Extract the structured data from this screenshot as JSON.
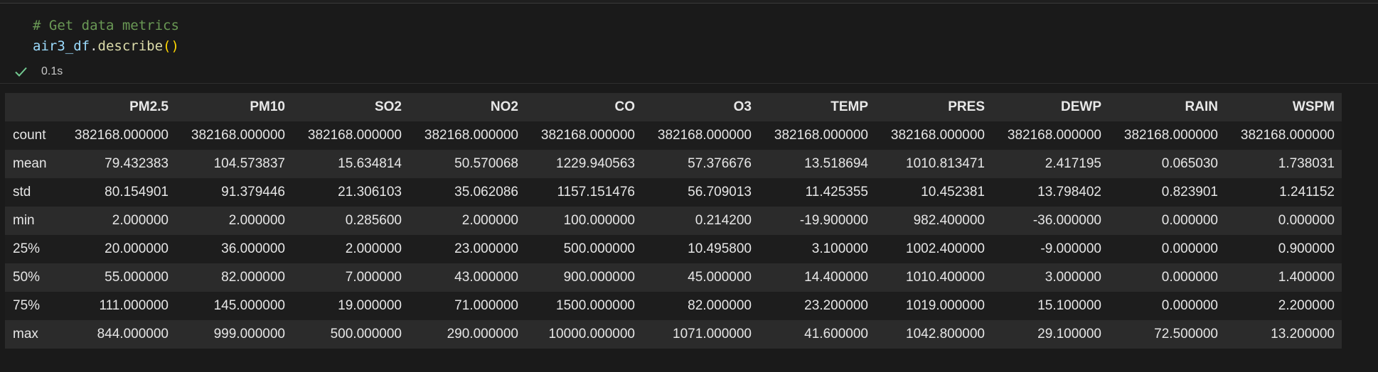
{
  "code": {
    "comment": "# Get data metrics",
    "var": "air3_df",
    "dot": ".",
    "method": "describe",
    "parens": "()"
  },
  "execution": {
    "status_icon": "check-icon",
    "status_color": "#73c991",
    "time": "0.1s"
  },
  "table": {
    "columns": [
      "PM2.5",
      "PM10",
      "SO2",
      "NO2",
      "CO",
      "O3",
      "TEMP",
      "PRES",
      "DEWP",
      "RAIN",
      "WSPM"
    ],
    "rows": [
      {
        "label": "count",
        "values": [
          "382168.000000",
          "382168.000000",
          "382168.000000",
          "382168.000000",
          "382168.000000",
          "382168.000000",
          "382168.000000",
          "382168.000000",
          "382168.000000",
          "382168.000000",
          "382168.000000"
        ]
      },
      {
        "label": "mean",
        "values": [
          "79.432383",
          "104.573837",
          "15.634814",
          "50.570068",
          "1229.940563",
          "57.376676",
          "13.518694",
          "1010.813471",
          "2.417195",
          "0.065030",
          "1.738031"
        ]
      },
      {
        "label": "std",
        "values": [
          "80.154901",
          "91.379446",
          "21.306103",
          "35.062086",
          "1157.151476",
          "56.709013",
          "11.425355",
          "10.452381",
          "13.798402",
          "0.823901",
          "1.241152"
        ]
      },
      {
        "label": "min",
        "values": [
          "2.000000",
          "2.000000",
          "0.285600",
          "2.000000",
          "100.000000",
          "0.214200",
          "-19.900000",
          "982.400000",
          "-36.000000",
          "0.000000",
          "0.000000"
        ]
      },
      {
        "label": "25%",
        "values": [
          "20.000000",
          "36.000000",
          "2.000000",
          "23.000000",
          "500.000000",
          "10.495800",
          "3.100000",
          "1002.400000",
          "-9.000000",
          "0.000000",
          "0.900000"
        ]
      },
      {
        "label": "50%",
        "values": [
          "55.000000",
          "82.000000",
          "7.000000",
          "43.000000",
          "900.000000",
          "45.000000",
          "14.400000",
          "1010.400000",
          "3.000000",
          "0.000000",
          "1.400000"
        ]
      },
      {
        "label": "75%",
        "values": [
          "111.000000",
          "145.000000",
          "19.000000",
          "71.000000",
          "1500.000000",
          "82.000000",
          "23.200000",
          "1019.000000",
          "15.100000",
          "0.000000",
          "2.200000"
        ]
      },
      {
        "label": "max",
        "values": [
          "844.000000",
          "999.000000",
          "500.000000",
          "290.000000",
          "10000.000000",
          "1071.000000",
          "41.600000",
          "1042.800000",
          "29.100000",
          "72.500000",
          "13.200000"
        ]
      }
    ]
  }
}
